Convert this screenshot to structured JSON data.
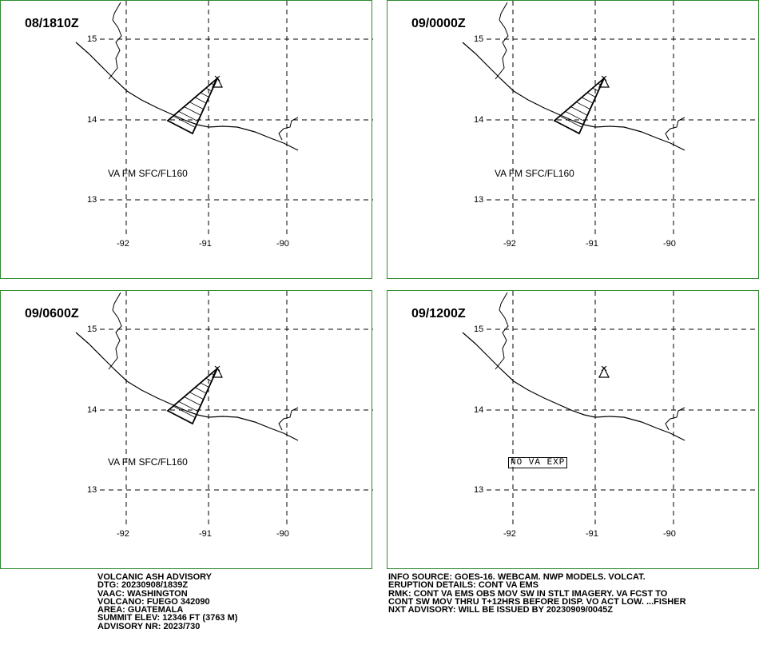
{
  "colors": {
    "frame": "#2e8b2e",
    "ink": "#000000"
  },
  "panels": [
    {
      "time": "08/1810Z",
      "ash_label": "VA FM SFC/FL160",
      "show_ash": true,
      "no_va_label": ""
    },
    {
      "time": "09/0000Z",
      "ash_label": "VA FM SFC/FL160",
      "show_ash": true,
      "no_va_label": ""
    },
    {
      "time": "09/0600Z",
      "ash_label": "VA FM SFC/FL160",
      "show_ash": true,
      "no_va_label": ""
    },
    {
      "time": "09/1200Z",
      "ash_label": "",
      "show_ash": false,
      "no_va_label": "NO VA EXP"
    }
  ],
  "grid": {
    "lat_labels": [
      "15",
      "14",
      "13"
    ],
    "lon_labels": [
      "-92",
      "-91",
      "-90"
    ]
  },
  "volcano_symbol": "volcano-triangle-icon",
  "advisory": {
    "header": "VOLCANIC ASH ADVISORY",
    "dtg": "DTG: 20230908/1839Z",
    "vaac": "VAAC: WASHINGTON",
    "volcano": "VOLCANO: FUEGO 342090",
    "area": "AREA: GUATEMALA",
    "summit_elev": "SUMMIT ELEV: 12346 FT (3763 M)",
    "advisory_nr": "ADVISORY NR: 2023/730"
  },
  "details": {
    "info_source": "INFO SOURCE: GOES-16. WEBCAM. NWP MODELS. VOLCAT.",
    "eruption_details": "ERUPTION DETAILS: CONT VA EMS",
    "rmk_line1": "RMK: CONT VA EMS OBS MOV SW IN STLT IMAGERY. VA FCST TO",
    "rmk_line2": "CONT SW MOV THRU T+12HRS BEFORE DISP. VO ACT LOW. ...FISHER",
    "nxt_advisory": "NXT ADVISORY: WILL BE ISSUED BY 20230909/0045Z"
  }
}
